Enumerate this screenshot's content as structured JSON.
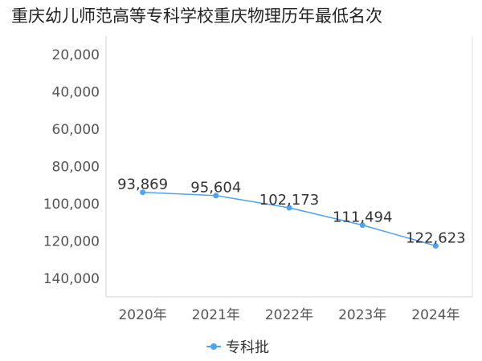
{
  "chart_data": {
    "type": "line",
    "title": "重庆幼儿师范高等专科学校重庆物理历年最低名次",
    "categories": [
      "2020年",
      "2021年",
      "2022年",
      "2023年",
      "2024年"
    ],
    "series": [
      {
        "name": "专科批",
        "values": [
          93869,
          95604,
          102173,
          111494,
          122623
        ],
        "value_labels": [
          "93,869",
          "95,604",
          "102,173",
          "111,494",
          "122,623"
        ],
        "color": "#4da3f5"
      }
    ],
    "y_ticks": [
      20000,
      40000,
      60000,
      80000,
      100000,
      120000,
      140000
    ],
    "y_tick_labels": [
      "20,000",
      "40,000",
      "60,000",
      "80,000",
      "100,000",
      "120,000",
      "140,000"
    ],
    "ylim": [
      10000,
      150000
    ],
    "y_inverted": true,
    "xlabel": "",
    "ylabel": "",
    "grid": false,
    "legend_position": "bottom-center"
  }
}
